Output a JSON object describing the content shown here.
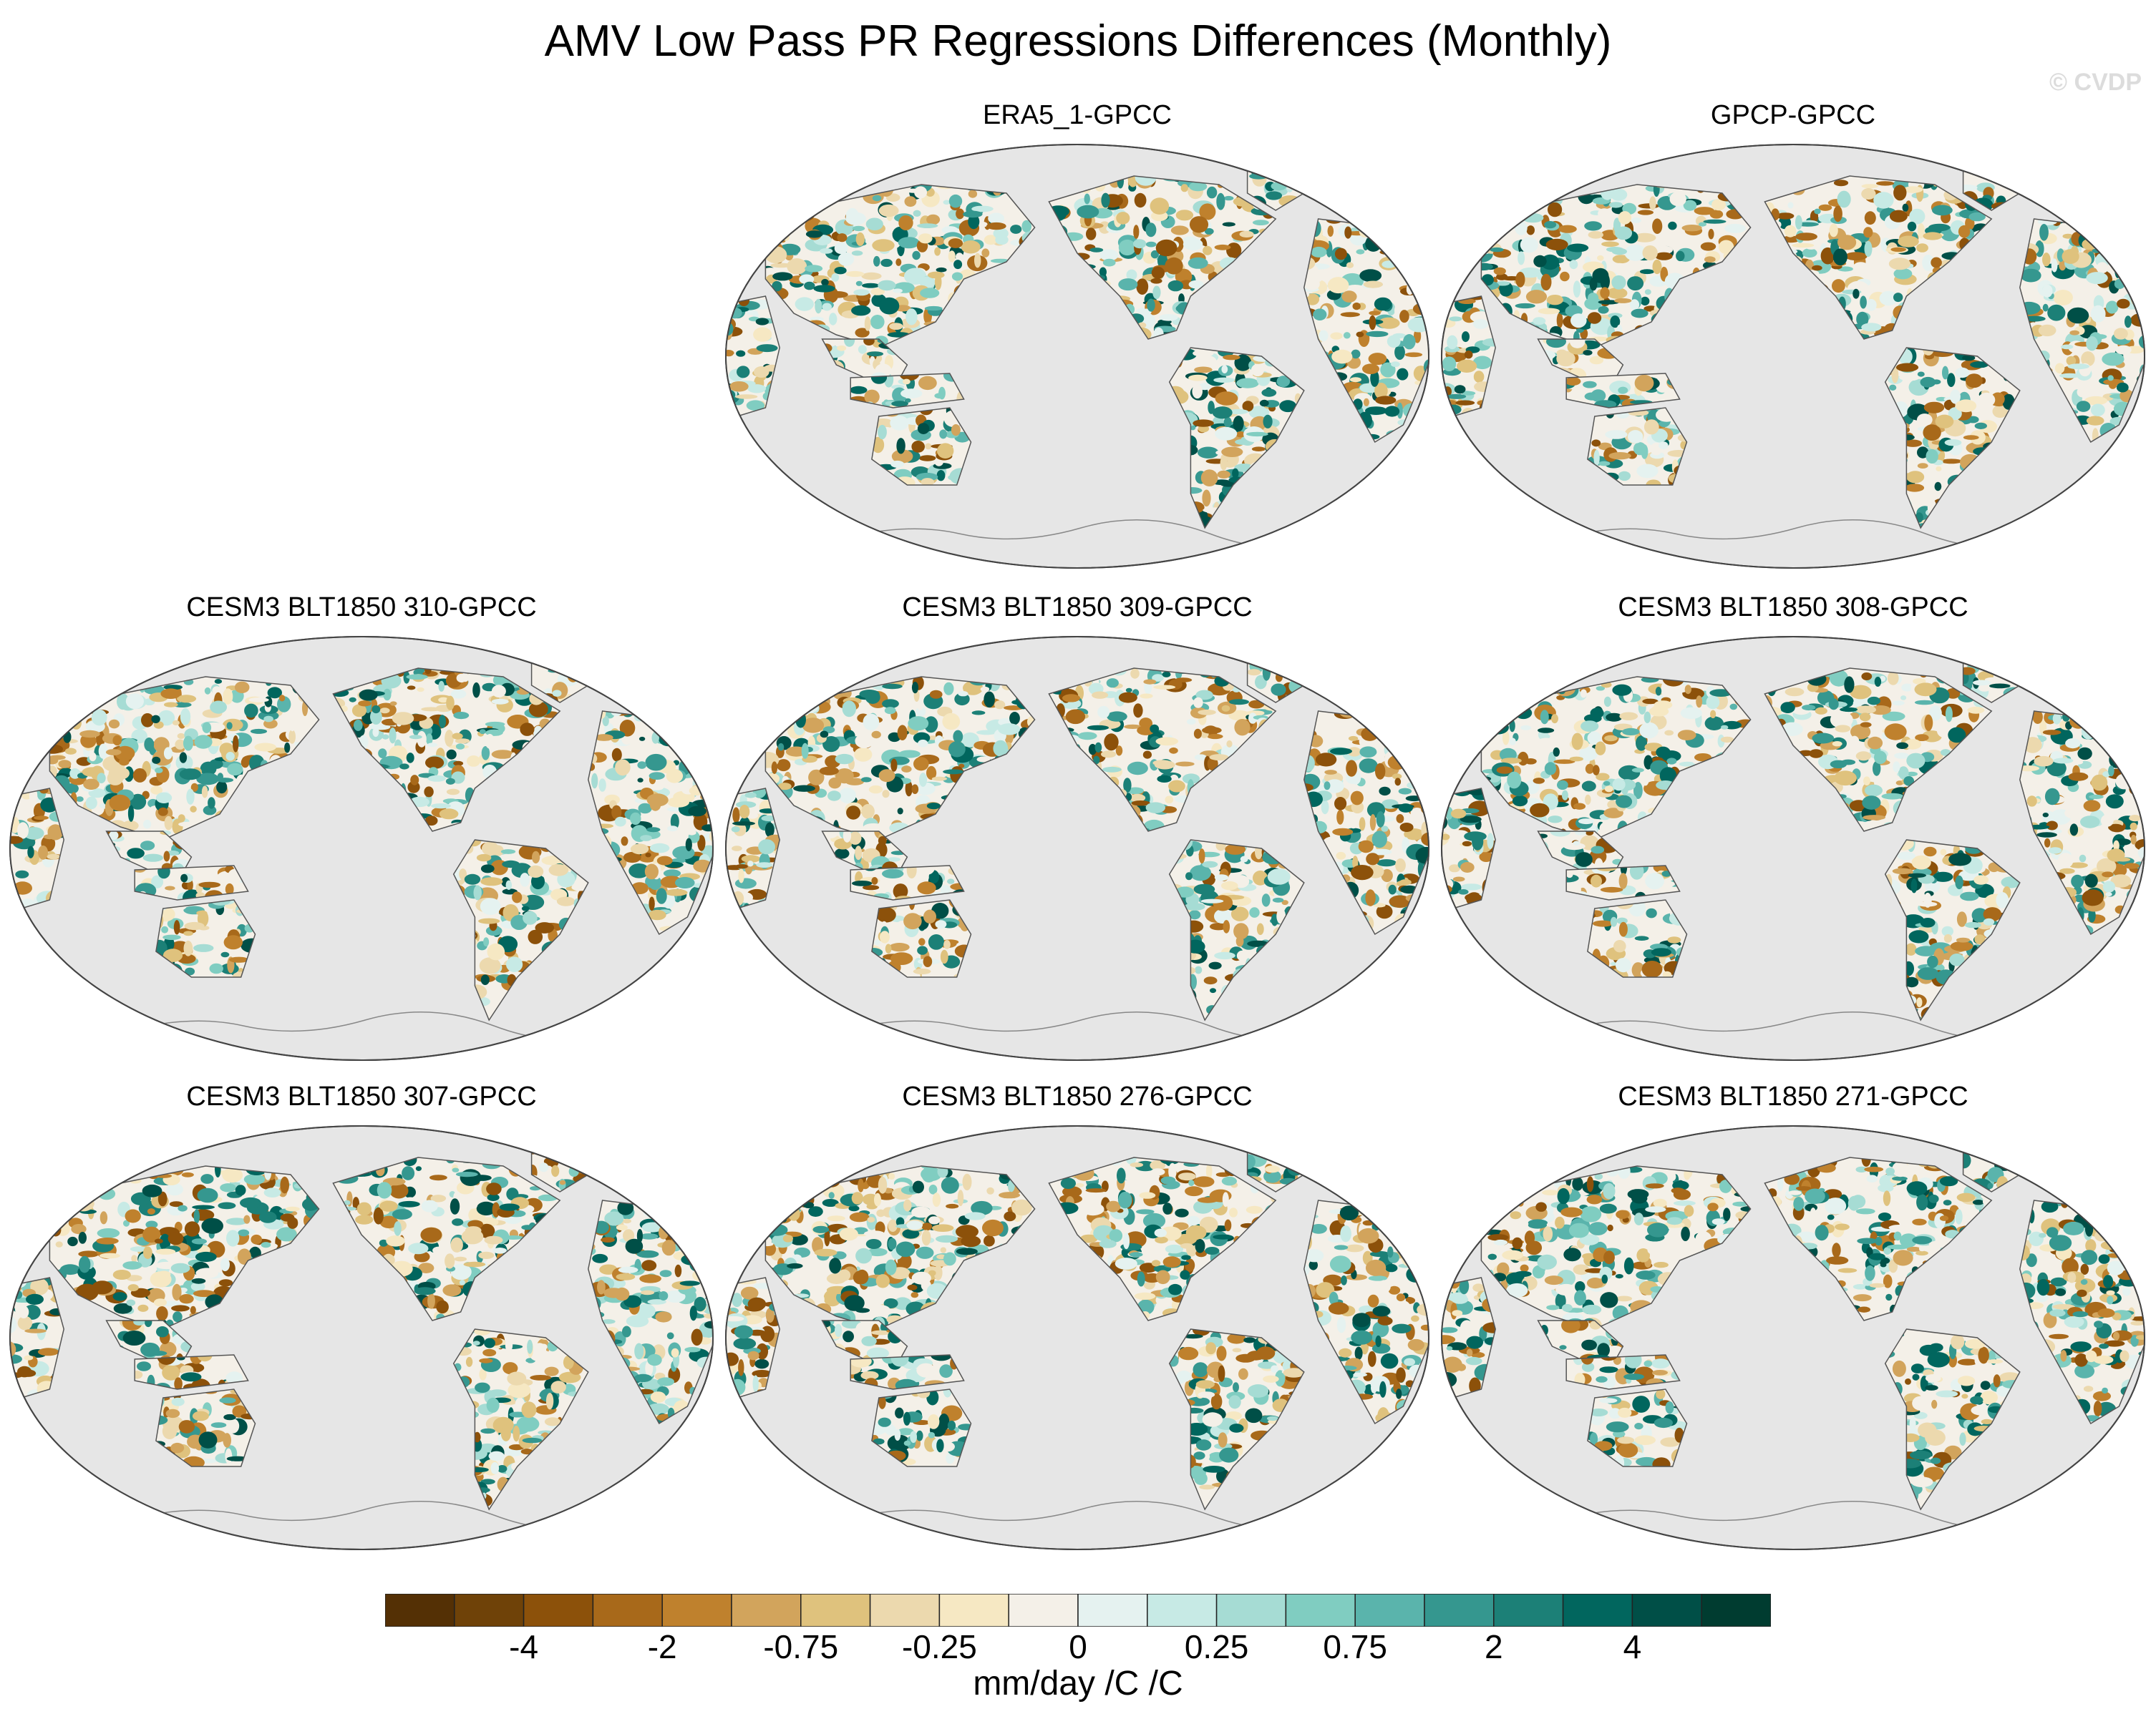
{
  "title": "AMV Low Pass PR Regressions Differences (Monthly)",
  "copyright": "© CVDP",
  "panels": [
    {
      "label": "ERA5_1-GPCC",
      "row": 0,
      "col": 1
    },
    {
      "label": "GPCP-GPCC",
      "row": 0,
      "col": 2
    },
    {
      "label": "CESM3 BLT1850 310-GPCC",
      "row": 1,
      "col": 0
    },
    {
      "label": "CESM3 BLT1850 309-GPCC",
      "row": 1,
      "col": 1
    },
    {
      "label": "CESM3 BLT1850 308-GPCC",
      "row": 1,
      "col": 2
    },
    {
      "label": "CESM3 BLT1850 307-GPCC",
      "row": 2,
      "col": 0
    },
    {
      "label": "CESM3 BLT1850 276-GPCC",
      "row": 2,
      "col": 1
    },
    {
      "label": "CESM3 BLT1850 271-GPCC",
      "row": 2,
      "col": 2
    }
  ],
  "colorbar": {
    "colors": [
      "#543005",
      "#6f4208",
      "#8c510a",
      "#a8691a",
      "#bf812d",
      "#d2a45c",
      "#dfc27d",
      "#ecd9ae",
      "#f6e8c3",
      "#f4f0e8",
      "#e5f2f0",
      "#c7eae5",
      "#a6dcd4",
      "#80cdc1",
      "#5ab4ac",
      "#35978f",
      "#1c8077",
      "#01665e",
      "#004f47",
      "#003c30"
    ],
    "tick_labels": [
      "-4",
      "-2",
      "-0.75",
      "-0.25",
      "0",
      "0.25",
      "0.75",
      "2",
      "4"
    ],
    "units": "mm/day /C /C"
  }
}
